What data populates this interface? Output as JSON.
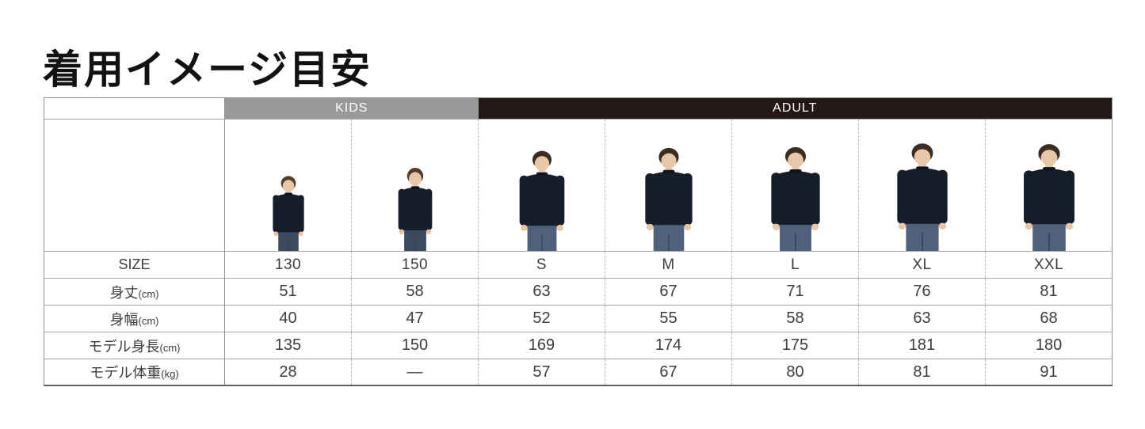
{
  "page": {
    "title": "着用イメージ目安"
  },
  "colors": {
    "kids_header_bg": "#9a9998",
    "adult_header_bg": "#231815",
    "header_text": "#ffffff",
    "sweatshirt_navy": "#161d2b",
    "table_border": "#8f8f8f"
  },
  "table": {
    "group_headers": [
      {
        "label": "KIDS",
        "colspan": 2
      },
      {
        "label": "ADULT",
        "colspan": 5
      }
    ],
    "row_labels": {
      "size": {
        "text": "SIZE",
        "unit": ""
      },
      "body_length": {
        "text": "身丈",
        "unit": "(cm)"
      },
      "body_width": {
        "text": "身幅",
        "unit": "(cm)"
      },
      "model_height": {
        "text": "モデル身長",
        "unit": "(cm)"
      },
      "model_weight": {
        "text": "モデル体重",
        "unit": "(kg)"
      }
    },
    "columns": [
      {
        "group": "KIDS",
        "figure": "child",
        "size": "130",
        "body_length": "51",
        "body_width": "40",
        "model_height": "135",
        "model_weight": "28"
      },
      {
        "group": "KIDS",
        "figure": "child",
        "size": "150",
        "body_length": "58",
        "body_width": "47",
        "model_height": "150",
        "model_weight": "—"
      },
      {
        "group": "ADULT",
        "figure": "adult",
        "size": "S",
        "body_length": "63",
        "body_width": "52",
        "model_height": "169",
        "model_weight": "57"
      },
      {
        "group": "ADULT",
        "figure": "adult",
        "size": "M",
        "body_length": "67",
        "body_width": "55",
        "model_height": "174",
        "model_weight": "67"
      },
      {
        "group": "ADULT",
        "figure": "adult",
        "size": "L",
        "body_length": "71",
        "body_width": "58",
        "model_height": "175",
        "model_weight": "80"
      },
      {
        "group": "ADULT",
        "figure": "adult",
        "size": "XL",
        "body_length": "76",
        "body_width": "63",
        "model_height": "181",
        "model_weight": "81"
      },
      {
        "group": "ADULT",
        "figure": "adult",
        "size": "XXL",
        "body_length": "81",
        "body_width": "68",
        "model_height": "180",
        "model_weight": "91"
      }
    ]
  }
}
